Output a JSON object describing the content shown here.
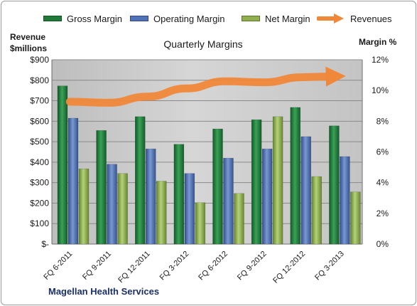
{
  "chart_data": {
    "type": "bar",
    "title": "Quarterly Margins",
    "ylabel_left": [
      "Revenue",
      "$millions"
    ],
    "ylabel_right": "Margin %",
    "categories": [
      "FQ 6-2011",
      "FQ 9-2011",
      "FQ 12-2011",
      "FQ 3-2012",
      "FQ 6-2012",
      "FQ 9-2012",
      "FQ 12-2012",
      "FQ 3-2013"
    ],
    "ylim_left": [
      0,
      900
    ],
    "ylim_right": [
      0,
      12
    ],
    "y_ticks_left": [
      "$-",
      "$100",
      "$200",
      "$300",
      "$400",
      "$500",
      "$600",
      "$700",
      "$800",
      "$900"
    ],
    "y_ticks_right": [
      "0%",
      "2%",
      "4%",
      "6%",
      "8%",
      "10%",
      "12%"
    ],
    "series": [
      {
        "name": "Gross Margin",
        "axis": "right",
        "unit": "%",
        "color": "#1f7a3a",
        "values": [
          10.3,
          7.4,
          8.3,
          6.5,
          7.5,
          8.1,
          8.9,
          7.7
        ]
      },
      {
        "name": "Operating Margin",
        "axis": "right",
        "unit": "%",
        "color": "#4f72b8",
        "values": [
          8.2,
          5.2,
          6.2,
          4.6,
          5.6,
          6.2,
          7.0,
          5.7
        ]
      },
      {
        "name": "Net Margin",
        "axis": "right",
        "unit": "%",
        "color": "#8fb04c",
        "values": [
          4.9,
          4.6,
          4.1,
          2.7,
          3.3,
          8.3,
          4.4,
          3.4
        ]
      },
      {
        "name": "Revenues",
        "axis": "left",
        "unit": "$millions",
        "type": "line-arrow",
        "color": "#f0883a",
        "values": [
          695,
          690,
          720,
          760,
          795,
          790,
          815,
          820
        ]
      }
    ],
    "grid": true,
    "legend_position": "top"
  },
  "legend": {
    "items": [
      {
        "label": "Gross Margin",
        "color": "#1f7a3a"
      },
      {
        "label": "Operating Margin",
        "color": "#4f72b8"
      },
      {
        "label": "Net Margin",
        "color": "#8fb04c"
      },
      {
        "label": "Revenues",
        "color": "#f0883a"
      }
    ]
  },
  "company": "Magellan Health Services"
}
